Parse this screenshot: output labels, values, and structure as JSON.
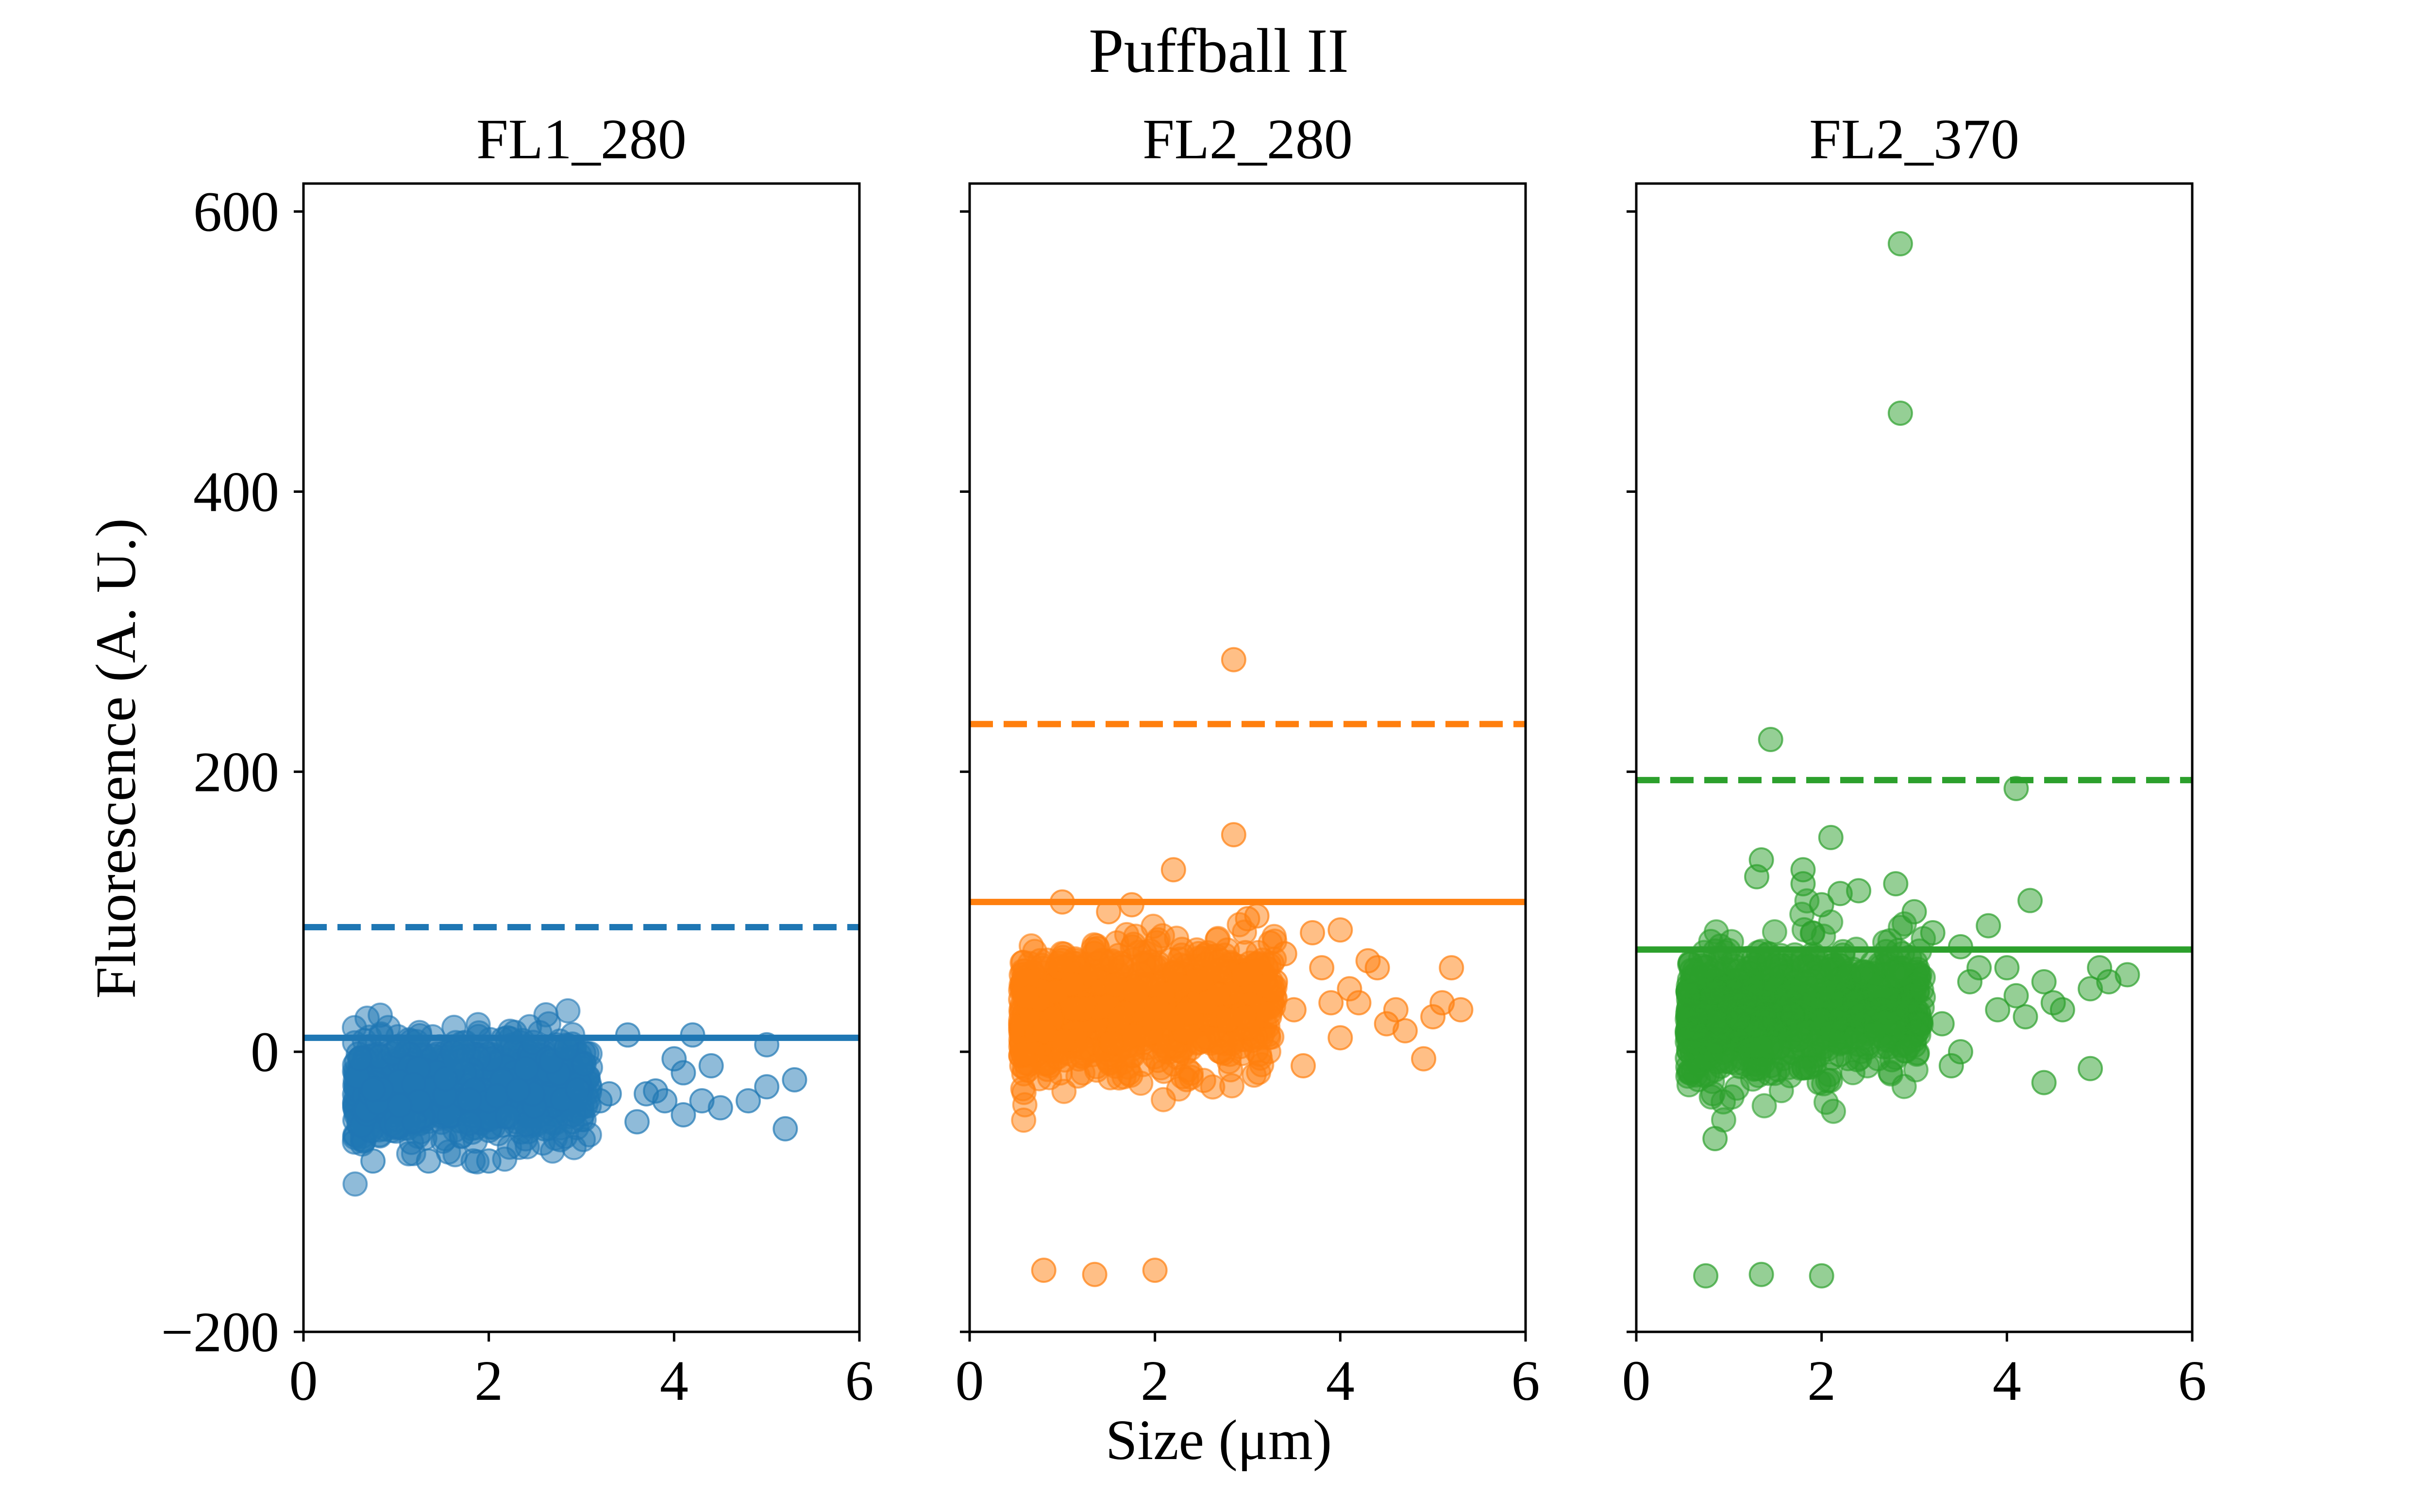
{
  "figure": {
    "title": "Puffball II",
    "xlabel": "Size (μm)",
    "ylabel": "Fluorescence (A. U.)"
  },
  "chart_data": [
    {
      "type": "scatter",
      "title": "FL1_280",
      "color": "#1f77b4",
      "xlim": [
        0,
        6
      ],
      "ylim": [
        -200,
        620
      ],
      "x_ticks": [
        0,
        2,
        4,
        6
      ],
      "y_ticks": [
        -200,
        0,
        200,
        400,
        600
      ],
      "y_tick_labels": [
        "−200",
        "0",
        "200",
        "400",
        "600"
      ],
      "mean_line": 10,
      "threshold_line": 89,
      "cluster": {
        "x_range": [
          0.55,
          3.1
        ],
        "y_mean": -28,
        "y_spread": 18,
        "count": 900
      },
      "points": [
        [
          0.75,
          -78
        ],
        [
          1.35,
          -78
        ],
        [
          1.65,
          -5
        ],
        [
          2.0,
          -78
        ],
        [
          2.2,
          10
        ],
        [
          2.6,
          -55
        ],
        [
          2.9,
          -50
        ],
        [
          3.0,
          -40
        ],
        [
          3.2,
          -35
        ],
        [
          3.5,
          12
        ],
        [
          3.7,
          -30
        ],
        [
          3.6,
          -50
        ],
        [
          3.9,
          -35
        ],
        [
          4.0,
          -5
        ],
        [
          4.1,
          -15
        ],
        [
          4.2,
          12
        ],
        [
          4.3,
          -35
        ],
        [
          4.4,
          -10
        ],
        [
          4.5,
          -40
        ],
        [
          4.8,
          -35
        ],
        [
          5.0,
          5
        ],
        [
          5.0,
          -25
        ],
        [
          5.2,
          -55
        ],
        [
          5.3,
          -20
        ],
        [
          3.3,
          -30
        ],
        [
          3.8,
          -28
        ],
        [
          4.1,
          -45
        ]
      ]
    },
    {
      "type": "scatter",
      "title": "FL2_280",
      "color": "#ff7f0e",
      "xlim": [
        0,
        6
      ],
      "ylim": [
        -200,
        620
      ],
      "x_ticks": [
        0,
        2,
        4,
        6
      ],
      "y_ticks": [
        -200,
        0,
        200,
        400,
        600
      ],
      "mean_line": 107,
      "threshold_line": 234,
      "cluster": {
        "x_range": [
          0.55,
          3.3
        ],
        "y_mean": 28,
        "y_spread": 22,
        "count": 1100
      },
      "points": [
        [
          2.85,
          280
        ],
        [
          2.85,
          155
        ],
        [
          2.2,
          130
        ],
        [
          0.8,
          -156
        ],
        [
          1.35,
          -159
        ],
        [
          2.0,
          -156
        ],
        [
          1.0,
          107
        ],
        [
          1.5,
          100
        ],
        [
          1.75,
          105
        ],
        [
          3.0,
          95
        ],
        [
          3.1,
          97
        ],
        [
          3.5,
          30
        ],
        [
          3.7,
          85
        ],
        [
          3.8,
          60
        ],
        [
          3.9,
          35
        ],
        [
          4.0,
          87
        ],
        [
          4.1,
          45
        ],
        [
          4.2,
          35
        ],
        [
          4.3,
          65
        ],
        [
          4.4,
          60
        ],
        [
          4.6,
          30
        ],
        [
          4.7,
          15
        ],
        [
          4.9,
          -5
        ],
        [
          5.0,
          25
        ],
        [
          5.1,
          35
        ],
        [
          5.2,
          60
        ],
        [
          5.3,
          30
        ],
        [
          3.6,
          -10
        ],
        [
          4.0,
          10
        ],
        [
          3.3,
          50
        ],
        [
          4.5,
          20
        ],
        [
          3.4,
          70
        ]
      ]
    },
    {
      "type": "scatter",
      "title": "FL2_370",
      "color": "#2ca02c",
      "xlim": [
        0,
        6
      ],
      "ylim": [
        -200,
        620
      ],
      "x_ticks": [
        0,
        2,
        4,
        6
      ],
      "y_ticks": [
        -200,
        0,
        200,
        400,
        600
      ],
      "mean_line": 73,
      "threshold_line": 194,
      "cluster": {
        "x_range": [
          0.55,
          3.1
        ],
        "y_mean": 28,
        "y_spread": 22,
        "count": 1000
      },
      "points": [
        [
          2.85,
          577
        ],
        [
          2.85,
          456
        ],
        [
          1.45,
          223
        ],
        [
          4.1,
          188
        ],
        [
          2.1,
          153
        ],
        [
          1.3,
          125
        ],
        [
          1.35,
          137
        ],
        [
          1.8,
          130
        ],
        [
          1.8,
          120
        ],
        [
          2.0,
          105
        ],
        [
          2.2,
          113
        ],
        [
          2.4,
          115
        ],
        [
          2.8,
          120
        ],
        [
          3.0,
          100
        ],
        [
          3.2,
          85
        ],
        [
          4.25,
          108
        ],
        [
          3.5,
          75
        ],
        [
          3.6,
          50
        ],
        [
          3.7,
          60
        ],
        [
          3.8,
          90
        ],
        [
          3.9,
          30
        ],
        [
          4.0,
          60
        ],
        [
          4.1,
          40
        ],
        [
          4.2,
          25
        ],
        [
          4.4,
          50
        ],
        [
          4.5,
          35
        ],
        [
          4.6,
          30
        ],
        [
          4.9,
          45
        ],
        [
          5.0,
          60
        ],
        [
          5.1,
          50
        ],
        [
          5.3,
          55
        ],
        [
          3.3,
          20
        ],
        [
          3.5,
          0
        ],
        [
          3.4,
          -10
        ],
        [
          4.4,
          -22
        ],
        [
          4.9,
          -12
        ],
        [
          0.75,
          -160
        ],
        [
          1.35,
          -159
        ],
        [
          2.0,
          -160
        ],
        [
          0.85,
          -62
        ]
      ]
    }
  ]
}
